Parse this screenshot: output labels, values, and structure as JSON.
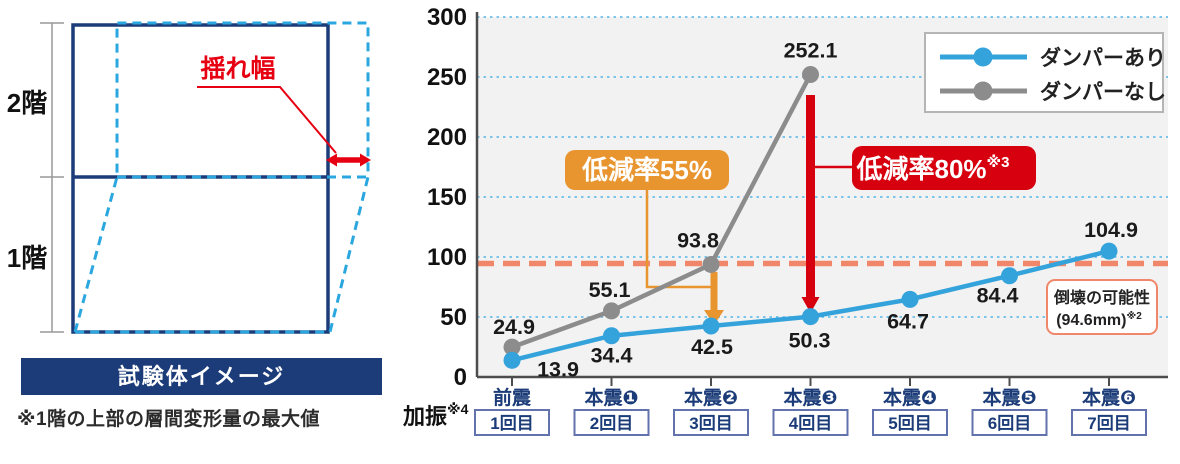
{
  "left_panel": {
    "floor2_label": "2階",
    "floor1_label": "1階",
    "sway_label": "揺れ幅",
    "caption_banner": "試験体イメージ",
    "footnote": "※1階の上部の層間変形量の最大値",
    "colors": {
      "frame": "#1B3C78",
      "deformed": "#2BA7E0",
      "sway_red": "#E60012"
    }
  },
  "chart_data": {
    "type": "line",
    "categories": [
      {
        "label": "前震",
        "badge": "",
        "trial": "1回目"
      },
      {
        "label": "本震",
        "badge": "❶",
        "trial": "2回目"
      },
      {
        "label": "本震",
        "badge": "❷",
        "trial": "3回目"
      },
      {
        "label": "本震",
        "badge": "❸",
        "trial": "4回目"
      },
      {
        "label": "本震",
        "badge": "❹",
        "trial": "5回目"
      },
      {
        "label": "本震",
        "badge": "❺",
        "trial": "6回目"
      },
      {
        "label": "本震",
        "badge": "❻",
        "trial": "7回目"
      }
    ],
    "xaxis_label": "加振",
    "xaxis_label_sup": "※4",
    "yticks": [
      0,
      50,
      100,
      150,
      200,
      250,
      300
    ],
    "ylim": [
      0,
      300
    ],
    "grid": true,
    "legend_position": "top-right",
    "series": [
      {
        "name": "ダンパーあり",
        "color": "#35A3DB",
        "values": [
          13.9,
          34.4,
          42.5,
          50.3,
          64.7,
          84.4,
          104.9
        ]
      },
      {
        "name": "ダンパーなし",
        "color": "#8C8C8C",
        "values": [
          24.9,
          55.1,
          93.8,
          252.1
        ]
      }
    ],
    "threshold": {
      "value": 94.6,
      "color": "#F0876A",
      "label_title": "倒壊の可能性",
      "label_value": "(94.6mm)",
      "label_sup": "※2"
    },
    "annotations": [
      {
        "text": "低減率55%",
        "sup": "",
        "color": "#E8952F",
        "at_category": 2
      },
      {
        "text": "低減率80%",
        "sup": "※3",
        "color": "#D7000F",
        "at_category": 3
      }
    ],
    "category_label_color": "#1B3C78",
    "trial_box_border": "#6272AC"
  }
}
